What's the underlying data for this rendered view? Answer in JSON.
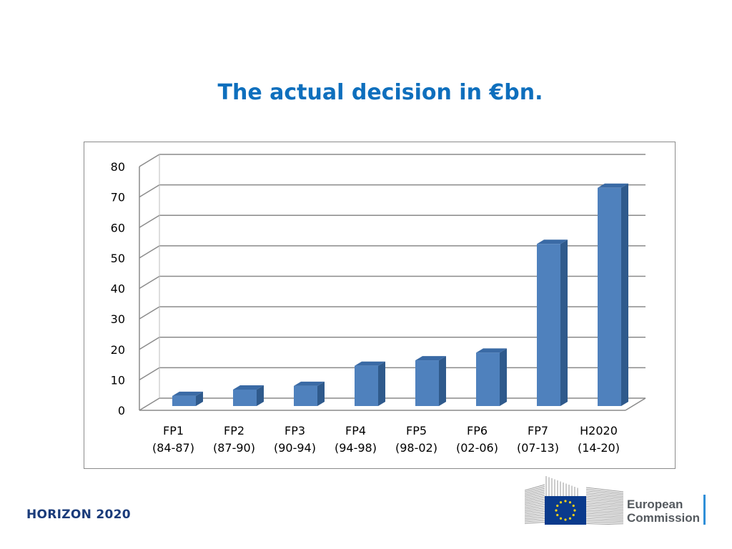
{
  "title": "The actual decision in €bn.",
  "footer": {
    "brand": "HORIZON 2020"
  },
  "logo": {
    "line1": "European",
    "line2": "Commission"
  },
  "colors": {
    "title": "#0e6fbd",
    "bar_front": "#4f81bd",
    "bar_side": "#2f5a8c",
    "bar_top": "#3a6aa5",
    "flag": "#0a3a8c",
    "stars": "#f7d117"
  },
  "chart_data": {
    "type": "bar",
    "three_d": true,
    "categories": [
      [
        "FP1",
        "(84-87)"
      ],
      [
        "FP2",
        "(87-90)"
      ],
      [
        "FP3",
        "(90-94)"
      ],
      [
        "FP4",
        "(94-98)"
      ],
      [
        "FP5",
        "(98-02)"
      ],
      [
        "FP6",
        "(02-06)"
      ],
      [
        "FP7",
        "(07-13)"
      ],
      [
        "H2020",
        "(14-20)"
      ]
    ],
    "values": [
      3.3,
      5.4,
      6.6,
      13.2,
      15.0,
      17.5,
      53.2,
      71.6
    ],
    "yticks": [
      0,
      10,
      20,
      30,
      40,
      50,
      60,
      70,
      80
    ],
    "ylim": [
      0,
      80
    ],
    "grid": true,
    "legend": "none"
  }
}
